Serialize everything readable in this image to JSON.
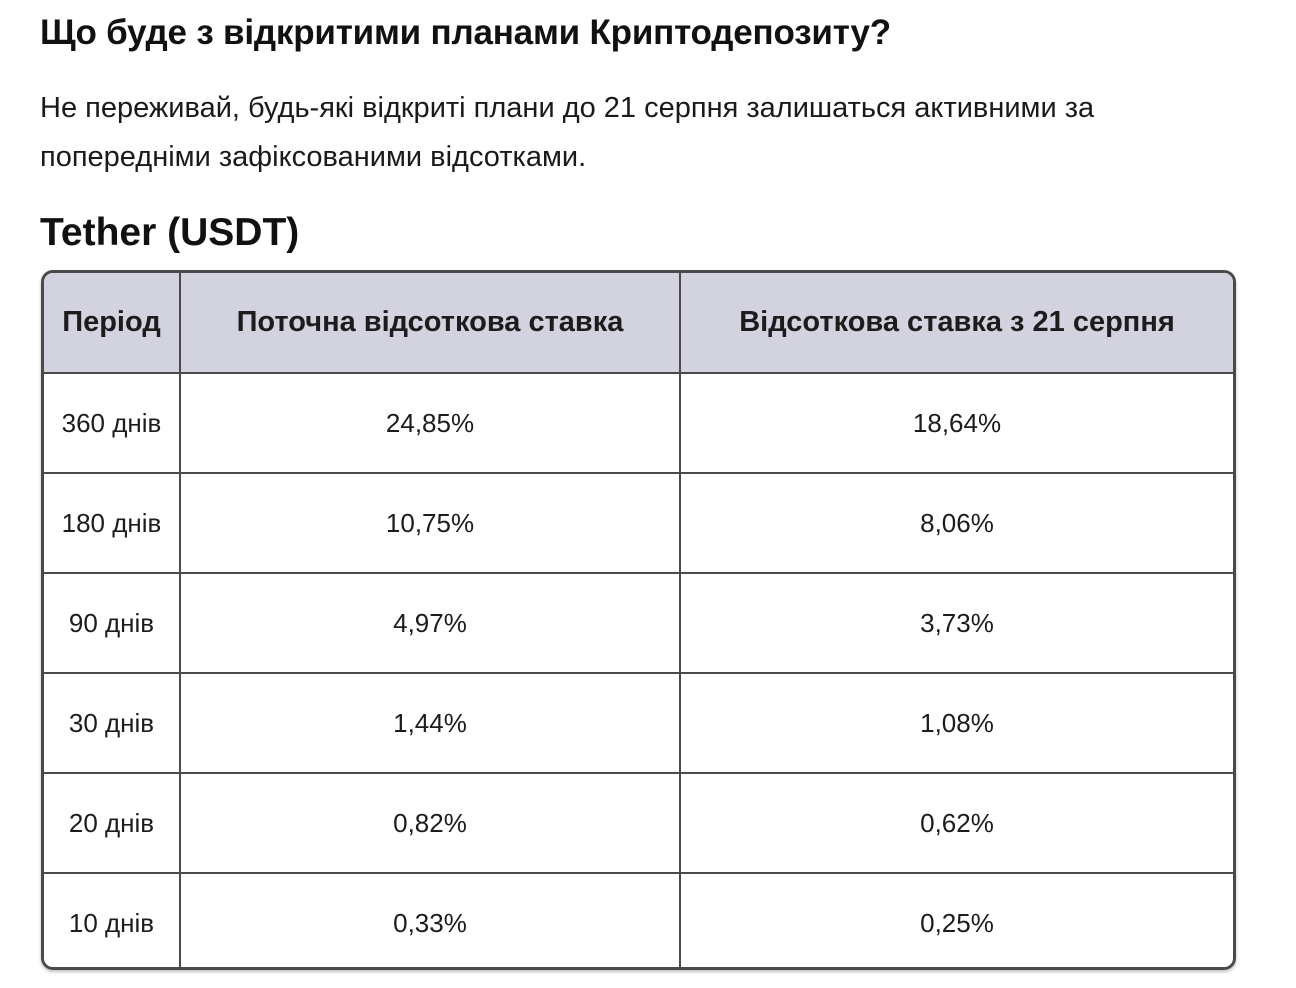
{
  "question": "Що буде з відкритими планами Криптодепозиту?",
  "answer": "Не переживай, будь-які відкриті плани до 21 серпня залишаться активними за попередніми зафіксованими відсотками.",
  "asset_title": "Tether (USDT)",
  "table": {
    "headers": [
      "Період",
      "Поточна відсоткова ставка",
      "Відсоткова ставка з 21 серпня"
    ],
    "rows": [
      [
        "360 днів",
        "24,85%",
        "18,64%"
      ],
      [
        "180 днів",
        "10,75%",
        "8,06%"
      ],
      [
        "90 днів",
        "4,97%",
        "3,73%"
      ],
      [
        "30 днів",
        "1,44%",
        "1,08%"
      ],
      [
        "20 днів",
        "0,82%",
        "0,62%"
      ],
      [
        "10 днів",
        "0,33%",
        "0,25%"
      ]
    ]
  },
  "colors": {
    "header_bg": "#d3d3e0",
    "border": "#4a4a4a",
    "text": "#111111"
  }
}
